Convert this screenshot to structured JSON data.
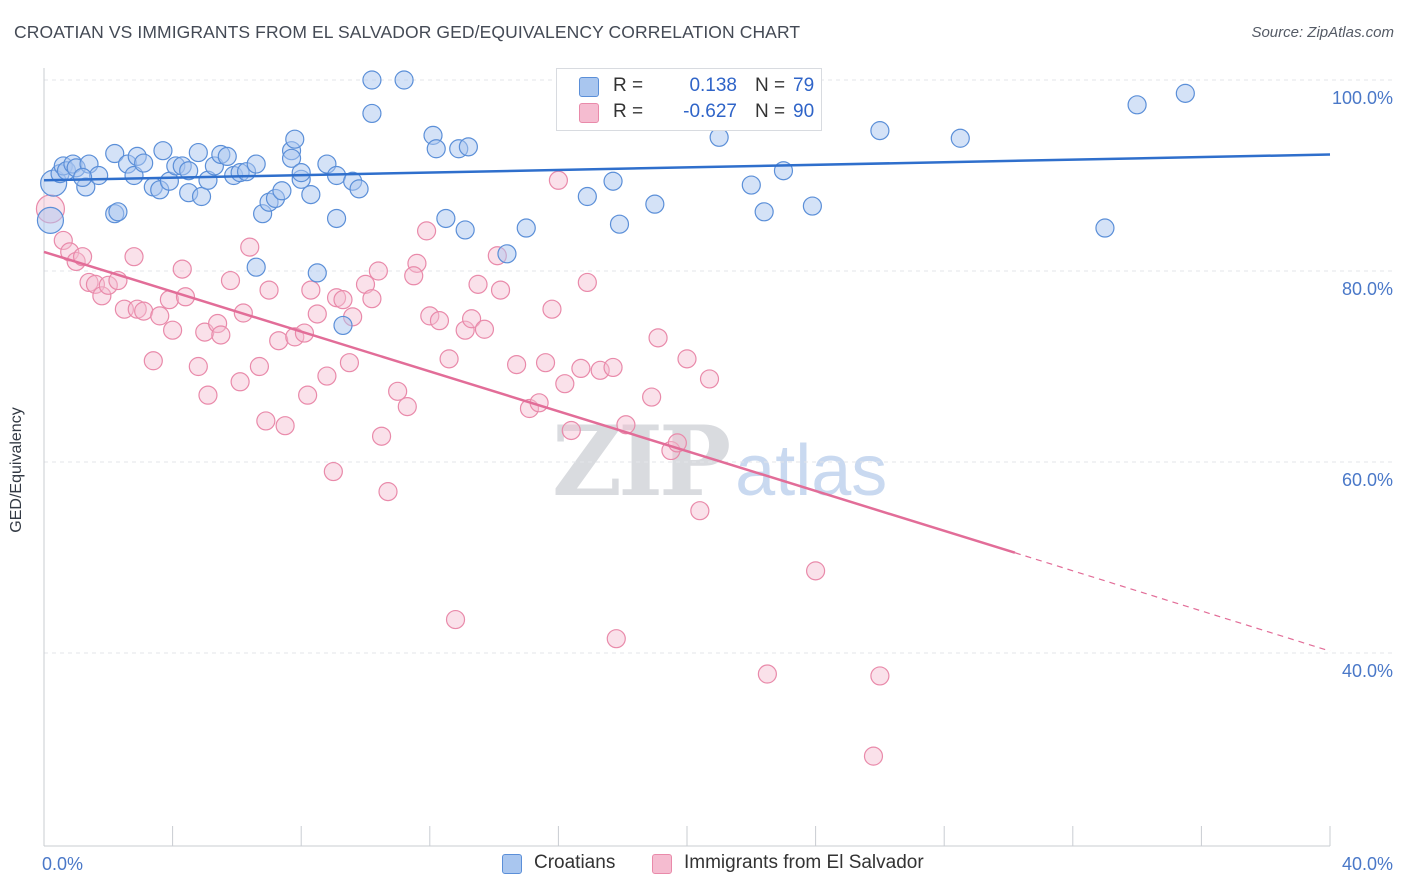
{
  "title": "CROATIAN VS IMMIGRANTS FROM EL SALVADOR GED/EQUIVALENCY CORRELATION CHART",
  "source": "Source: ZipAtlas.com",
  "watermark": {
    "zip": "ZIP",
    "atlas": "atlas"
  },
  "colors": {
    "blue_fill": "#a9c6ef",
    "blue_stroke": "#5b8fd8",
    "blue_line": "#2f6fcc",
    "pink_fill": "#f5bcd0",
    "pink_stroke": "#e98aaa",
    "pink_line": "#e26d98",
    "grid": "#e3e5ea",
    "axis_text": "#4a78c8"
  },
  "legend": {
    "rows": [
      {
        "r_label": "R =",
        "r_value": "0.138",
        "n_label": "N =",
        "n_value": "79"
      },
      {
        "r_label": "R =",
        "r_value": "-0.627",
        "n_label": "N =",
        "n_value": "90"
      }
    ]
  },
  "bottom_legend": {
    "series1": "Croatians",
    "series2": "Immigrants from El Salvador"
  },
  "chart_data": {
    "type": "scatter",
    "title": "CROATIAN VS IMMIGRANTS FROM EL SALVADOR GED/EQUIVALENCY CORRELATION CHART",
    "xlabel": "",
    "ylabel": "GED/Equivalency",
    "xlim": [
      0,
      40
    ],
    "ylim": [
      21,
      102
    ],
    "x_ticks_labeled": [
      "0.0%",
      "40.0%"
    ],
    "y_ticks": [
      40,
      60,
      80,
      100
    ],
    "y_tick_labels": [
      "40.0%",
      "60.0%",
      "80.0%",
      "100.0%"
    ],
    "grid": true,
    "legend_position": "top-center",
    "series": [
      {
        "name": "Croatians",
        "r": 0.138,
        "n": 79,
        "trend": {
          "x0": 0,
          "y0": 89.5,
          "x1": 40,
          "y1": 92.2
        },
        "points": [
          [
            0.2,
            85.3
          ],
          [
            0.3,
            89.2
          ],
          [
            0.5,
            90.2
          ],
          [
            0.6,
            91.0
          ],
          [
            0.7,
            90.5
          ],
          [
            0.9,
            91.2
          ],
          [
            1.0,
            90.8
          ],
          [
            1.3,
            88.8
          ],
          [
            1.4,
            91.2
          ],
          [
            1.7,
            90.0
          ],
          [
            2.2,
            92.3
          ],
          [
            2.2,
            86.0
          ],
          [
            2.6,
            91.2
          ],
          [
            2.8,
            90.0
          ],
          [
            2.9,
            92.0
          ],
          [
            3.1,
            91.3
          ],
          [
            3.4,
            88.8
          ],
          [
            3.6,
            88.5
          ],
          [
            3.7,
            92.6
          ],
          [
            3.9,
            89.4
          ],
          [
            4.1,
            91.0
          ],
          [
            4.3,
            91.0
          ],
          [
            4.5,
            88.2
          ],
          [
            4.8,
            92.4
          ],
          [
            4.9,
            87.8
          ],
          [
            5.1,
            89.5
          ],
          [
            5.3,
            91.0
          ],
          [
            5.5,
            92.2
          ],
          [
            5.7,
            92.0
          ],
          [
            5.9,
            90.0
          ],
          [
            6.1,
            90.3
          ],
          [
            6.3,
            90.4
          ],
          [
            6.6,
            91.2
          ],
          [
            6.8,
            86.0
          ],
          [
            7.0,
            87.2
          ],
          [
            7.2,
            87.6
          ],
          [
            7.4,
            88.4
          ],
          [
            7.7,
            92.6
          ],
          [
            7.8,
            93.8
          ],
          [
            7.7,
            91.8
          ],
          [
            8.0,
            89.6
          ],
          [
            8.3,
            88.0
          ],
          [
            8.8,
            91.2
          ],
          [
            8.5,
            79.8
          ],
          [
            9.1,
            90.0
          ],
          [
            9.1,
            85.5
          ],
          [
            9.6,
            89.4
          ],
          [
            9.8,
            88.6
          ],
          [
            9.3,
            74.3
          ],
          [
            10.2,
            96.5
          ],
          [
            10.2,
            100.0
          ],
          [
            11.2,
            100.0
          ],
          [
            12.1,
            94.2
          ],
          [
            12.2,
            92.8
          ],
          [
            12.5,
            85.5
          ],
          [
            12.9,
            92.8
          ],
          [
            13.2,
            93.0
          ],
          [
            13.1,
            84.3
          ],
          [
            14.4,
            81.8
          ],
          [
            15.0,
            84.5
          ],
          [
            16.9,
            87.8
          ],
          [
            17.9,
            84.9
          ],
          [
            17.7,
            89.4
          ],
          [
            19.0,
            87.0
          ],
          [
            21.0,
            94.0
          ],
          [
            22.0,
            89.0
          ],
          [
            22.4,
            86.2
          ],
          [
            23.0,
            90.5
          ],
          [
            23.9,
            86.8
          ],
          [
            26.0,
            94.7
          ],
          [
            28.5,
            93.9
          ],
          [
            33.0,
            84.5
          ],
          [
            34.0,
            97.4
          ],
          [
            35.5,
            98.6
          ],
          [
            2.3,
            86.2
          ],
          [
            4.5,
            90.5
          ],
          [
            6.6,
            80.4
          ],
          [
            1.2,
            89.8
          ],
          [
            8.0,
            90.3
          ]
        ]
      },
      {
        "name": "Immigrants from El Salvador",
        "r": -0.627,
        "n": 90,
        "trend": {
          "x0": 0,
          "y0": 82.0,
          "x1": 30.2,
          "y1": 50.5,
          "dash_x1": 40,
          "dash_y1": 40.2
        },
        "points": [
          [
            0.2,
            86.5
          ],
          [
            0.6,
            83.2
          ],
          [
            0.8,
            82.0
          ],
          [
            1.0,
            81.0
          ],
          [
            1.2,
            81.5
          ],
          [
            1.4,
            78.8
          ],
          [
            1.6,
            78.6
          ],
          [
            1.8,
            77.4
          ],
          [
            2.0,
            78.5
          ],
          [
            2.3,
            79.0
          ],
          [
            2.5,
            76.0
          ],
          [
            2.8,
            81.5
          ],
          [
            2.9,
            76.0
          ],
          [
            3.1,
            75.8
          ],
          [
            3.4,
            70.6
          ],
          [
            3.6,
            75.3
          ],
          [
            3.9,
            77.0
          ],
          [
            4.0,
            73.8
          ],
          [
            4.3,
            80.2
          ],
          [
            4.4,
            77.3
          ],
          [
            4.8,
            70.0
          ],
          [
            5.0,
            73.6
          ],
          [
            5.1,
            67.0
          ],
          [
            5.4,
            74.5
          ],
          [
            5.5,
            73.3
          ],
          [
            5.8,
            79.0
          ],
          [
            6.1,
            68.4
          ],
          [
            6.2,
            75.6
          ],
          [
            6.4,
            82.5
          ],
          [
            6.7,
            70.0
          ],
          [
            6.9,
            64.3
          ],
          [
            7.0,
            78.0
          ],
          [
            7.3,
            72.7
          ],
          [
            7.5,
            63.8
          ],
          [
            7.8,
            73.1
          ],
          [
            8.1,
            73.5
          ],
          [
            8.2,
            67.0
          ],
          [
            8.3,
            78.0
          ],
          [
            8.5,
            75.5
          ],
          [
            8.8,
            69.0
          ],
          [
            9.0,
            59.0
          ],
          [
            9.1,
            77.2
          ],
          [
            9.3,
            77.0
          ],
          [
            9.5,
            70.4
          ],
          [
            9.6,
            75.2
          ],
          [
            10.0,
            78.6
          ],
          [
            10.2,
            77.1
          ],
          [
            10.4,
            80.0
          ],
          [
            10.5,
            62.7
          ],
          [
            10.7,
            56.9
          ],
          [
            11.0,
            67.4
          ],
          [
            11.3,
            65.8
          ],
          [
            11.6,
            80.8
          ],
          [
            11.5,
            79.5
          ],
          [
            11.9,
            84.2
          ],
          [
            12.0,
            75.3
          ],
          [
            12.3,
            74.8
          ],
          [
            12.6,
            70.8
          ],
          [
            12.8,
            43.5
          ],
          [
            13.1,
            73.8
          ],
          [
            13.3,
            75.0
          ],
          [
            13.5,
            78.6
          ],
          [
            13.7,
            73.9
          ],
          [
            14.1,
            81.6
          ],
          [
            14.2,
            78.0
          ],
          [
            14.7,
            70.2
          ],
          [
            15.1,
            65.6
          ],
          [
            15.4,
            66.2
          ],
          [
            15.6,
            70.4
          ],
          [
            15.8,
            76.0
          ],
          [
            16.0,
            89.5
          ],
          [
            16.2,
            68.2
          ],
          [
            16.4,
            63.3
          ],
          [
            16.7,
            69.8
          ],
          [
            16.9,
            78.8
          ],
          [
            17.3,
            69.6
          ],
          [
            17.8,
            41.5
          ],
          [
            17.7,
            69.9
          ],
          [
            18.1,
            63.9
          ],
          [
            18.9,
            66.8
          ],
          [
            19.1,
            73.0
          ],
          [
            19.5,
            61.2
          ],
          [
            19.7,
            62.0
          ],
          [
            20.0,
            70.8
          ],
          [
            20.4,
            54.9
          ],
          [
            20.7,
            68.7
          ],
          [
            22.5,
            37.8
          ],
          [
            24.0,
            48.6
          ],
          [
            26.0,
            37.6
          ],
          [
            25.8,
            29.2
          ]
        ]
      }
    ]
  }
}
